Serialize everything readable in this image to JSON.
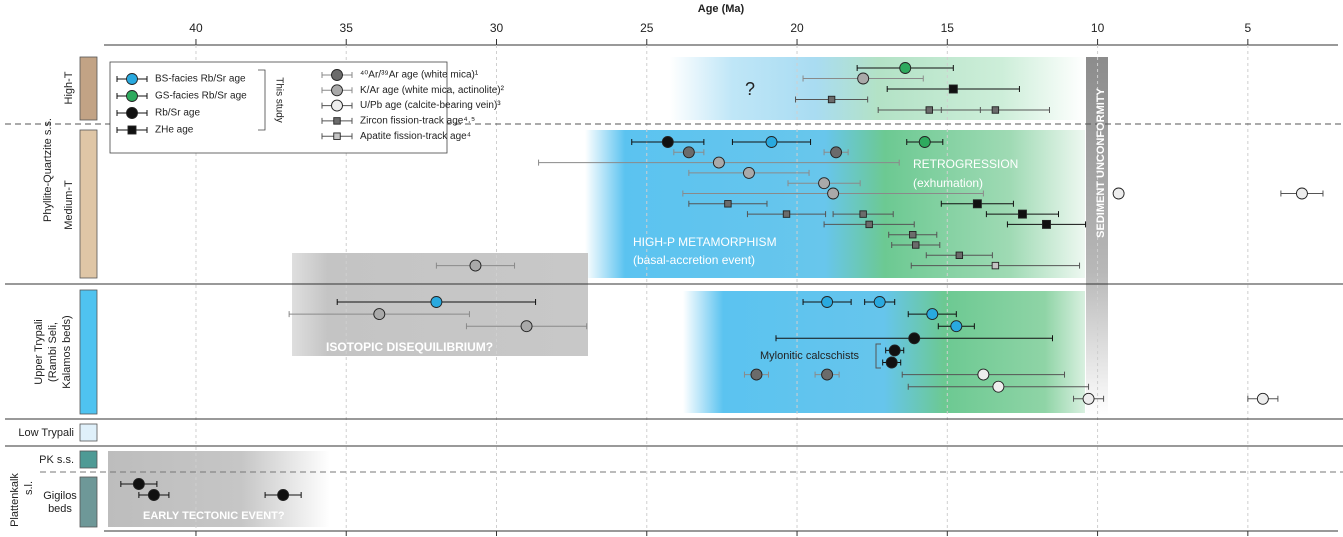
{
  "chart_data": {
    "type": "scatter",
    "xlabel": "Age (Ma)",
    "xlim": [
      43.06,
      2.0
    ],
    "xticks": [
      40,
      35,
      30,
      25,
      20,
      15,
      10,
      5
    ],
    "grid": true,
    "series": [
      {
        "name": "BS-facies Rb/Sr age",
        "color": "#29a9df",
        "marker": "circle",
        "errorbar_color": "#111111"
      },
      {
        "name": "GS-facies Rb/Sr age",
        "color": "#2eaa5e",
        "marker": "circle",
        "errorbar_color": "#111111"
      },
      {
        "name": "Rb/Sr age",
        "color": "#111111",
        "marker": "circle",
        "errorbar_color": "#111111"
      },
      {
        "name": "ZHe age",
        "color": "#111111",
        "marker": "square",
        "errorbar_color": "#111111"
      },
      {
        "name": "⁴⁰Ar/³⁹Ar age (white mica)¹",
        "color": "#6b6b6b",
        "marker": "circle",
        "errorbar_color": "#8a8a8a"
      },
      {
        "name": "K/Ar age (white mica, actinolite)²",
        "color": "#a9a9a9",
        "marker": "circle",
        "errorbar_color": "#8a8a8a"
      },
      {
        "name": "U/Pb age (calcite-bearing vein)³",
        "color": "#ededed",
        "marker": "circle",
        "errorbar_color": "#555555"
      },
      {
        "name": "Zircon fission-track age⁴˒⁵",
        "color": "#6b6b6b",
        "marker": "small-square",
        "errorbar_color": "#555555"
      },
      {
        "name": "Apatite fission-track age⁴",
        "color": "#c4c4c4",
        "marker": "small-square",
        "errorbar_color": "#555555"
      }
    ],
    "panels": [
      {
        "label": "High-T",
        "rows": [
          [
            {
              "series": "GS-facies Rb/Sr age",
              "x": 16.4,
              "xerr": 1.6
            }
          ],
          [
            {
              "series": "K/Ar age (white mica, actinolite)²",
              "x": 17.8,
              "xerr": 2.0
            }
          ],
          [
            {
              "series": "ZHe age",
              "x": 14.8,
              "xerr": 2.2
            }
          ],
          [
            {
              "series": "Zircon fission-track age⁴˒⁵",
              "x": 18.85,
              "xerr": 1.2
            }
          ],
          [
            {
              "series": "Zircon fission-track age⁴˒⁵",
              "x": 15.6,
              "xerr": 1.7
            },
            {
              "series": "Zircon fission-track age⁴˒⁵",
              "x": 13.4,
              "xerr": 1.8
            }
          ]
        ]
      },
      {
        "label": "Medium-T",
        "rows": [
          [
            {
              "series": "Rb/Sr age",
              "x": 24.3,
              "xerr": 1.2
            },
            {
              "series": "BS-facies Rb/Sr age",
              "x": 20.85,
              "xerr": 1.3
            },
            {
              "series": "GS-facies Rb/Sr age",
              "x": 15.75,
              "xerr": 0.6
            }
          ],
          [
            {
              "series": "⁴⁰Ar/³⁹Ar age (white mica)¹",
              "x": 23.6,
              "xerr": 0.5
            },
            {
              "series": "⁴⁰Ar/³⁹Ar age (white mica)¹",
              "x": 18.7,
              "xerr": 0.4
            }
          ],
          [
            {
              "series": "K/Ar age (white mica, actinolite)²",
              "x": 22.6,
              "xerr": 6.0
            }
          ],
          [
            {
              "series": "K/Ar age (white mica, actinolite)²",
              "x": 21.6,
              "xerr": 2.0
            }
          ],
          [
            {
              "series": "K/Ar age (white mica, actinolite)²",
              "x": 19.1,
              "xerr": 1.2
            }
          ],
          [
            {
              "series": "K/Ar age (white mica, actinolite)²",
              "x": 18.8,
              "xerr": 5.0
            },
            {
              "series": "U/Pb age (calcite-bearing vein)³",
              "x": 9.3
            },
            {
              "series": "U/Pb age (calcite-bearing vein)³",
              "x": 3.2,
              "xerr": 0.7
            }
          ],
          [
            {
              "series": "Zircon fission-track age⁴˒⁵",
              "x": 22.3,
              "xerr": 1.3
            },
            {
              "series": "ZHe age",
              "x": 14.0,
              "xerr": 1.2
            }
          ],
          [
            {
              "series": "Zircon fission-track age⁴˒⁵",
              "x": 20.35,
              "xerr": 1.3
            },
            {
              "series": "Zircon fission-track age⁴˒⁵",
              "x": 17.8,
              "xerr": 1.0
            },
            {
              "series": "ZHe age",
              "x": 12.5,
              "xerr": 1.2
            }
          ],
          [
            {
              "series": "Zircon fission-track age⁴˒⁵",
              "x": 17.6,
              "xerr": 1.5
            },
            {
              "series": "ZHe age",
              "x": 11.7,
              "xerr": 1.3
            }
          ],
          [
            {
              "series": "Zircon fission-track age⁴˒⁵",
              "x": 16.15,
              "xerr": 0.8
            }
          ],
          [
            {
              "series": "Zircon fission-track age⁴˒⁵",
              "x": 16.05,
              "xerr": 0.8
            }
          ],
          [
            {
              "series": "Zircon fission-track age⁴˒⁵",
              "x": 14.6,
              "xerr": 1.1
            }
          ],
          [
            {
              "series": "Apatite fission-track age⁴",
              "x": 13.4,
              "xerr": 2.8
            },
            {
              "series": "K/Ar age (white mica, actinolite)²",
              "x": 30.7,
              "xerr": 1.3
            }
          ]
        ]
      },
      {
        "label": [
          "Upper Trypali",
          "(Rambi Seli,",
          "Kalamos beds)"
        ],
        "rows": [
          [
            {
              "series": "BS-facies Rb/Sr age",
              "x": 19.0,
              "xerr": 0.8
            },
            {
              "series": "BS-facies Rb/Sr age",
              "x": 17.25,
              "xerr": 0.5
            },
            {
              "series": "BS-facies Rb/Sr age",
              "x": 32.0,
              "xerr": 3.3
            }
          ],
          [
            {
              "series": "BS-facies Rb/Sr age",
              "x": 15.5,
              "xerr": 0.8
            },
            {
              "series": "K/Ar age (white mica, actinolite)²",
              "x": 33.9,
              "xerr": 3.0
            }
          ],
          [
            {
              "series": "BS-facies Rb/Sr age",
              "x": 14.7,
              "xerr": 0.6
            },
            {
              "series": "K/Ar age (white mica, actinolite)²",
              "x": 29.0,
              "xerr": 2.0
            }
          ],
          [
            {
              "series": "Rb/Sr age",
              "x": 16.1,
              "xerr": 4.6
            }
          ],
          [
            {
              "series": "Rb/Sr age",
              "x": 16.75,
              "xerr": 0.3
            }
          ],
          [
            {
              "series": "Rb/Sr age",
              "x": 16.85,
              "xerr": 0.3
            }
          ],
          [
            {
              "series": "⁴⁰Ar/³⁹Ar age (white mica)¹",
              "x": 21.35,
              "xerr": 0.4
            },
            {
              "series": "⁴⁰Ar/³⁹Ar age (white mica)¹",
              "x": 19.0,
              "xerr": 0.4
            },
            {
              "series": "U/Pb age (calcite-bearing vein)³",
              "x": 13.8,
              "xerr": 2.7
            }
          ],
          [
            {
              "series": "U/Pb age (calcite-bearing vein)³",
              "x": 13.3,
              "xerr": 3.0
            }
          ],
          [
            {
              "series": "U/Pb age (calcite-bearing vein)³",
              "x": 10.3,
              "xerr": 0.5
            },
            {
              "series": "U/Pb age (calcite-bearing vein)³",
              "x": 4.5,
              "xerr": 0.5
            }
          ]
        ]
      },
      {
        "label": "Low Trypali",
        "rows": []
      },
      {
        "label": "PK s.s.",
        "rows": []
      },
      {
        "label": [
          "Gigilos",
          "beds"
        ],
        "rows": [
          [
            {
              "series": "Rb/Sr age",
              "x": 41.9,
              "xerr": 0.6
            }
          ],
          [
            {
              "series": "Rb/Sr age",
              "x": 41.4,
              "xerr": 0.5
            },
            {
              "series": "Rb/Sr age",
              "x": 37.1,
              "xerr": 0.6
            }
          ]
        ]
      }
    ],
    "groups": {
      "phyllite_quartzite": "Phyllite-Quartzite s.s.",
      "plattenkalk": [
        "Plattenkalk",
        "s.l."
      ]
    },
    "annotations": {
      "question": "?",
      "retrogression": [
        "RETROGRESSION",
        "(exhumation)"
      ],
      "high_p": [
        "HIGH-P METAMORPHISM",
        "(basal-accretion event)"
      ],
      "unconformity": "SEDIMENT UNCONFORMITY",
      "disequilibrium": "ISOTOPIC DISEQUILIBRIUM?",
      "mylonitic": "Mylonitic calcschists",
      "early": "EARLY TECTONIC EVENT?",
      "this_study": "This study"
    }
  }
}
